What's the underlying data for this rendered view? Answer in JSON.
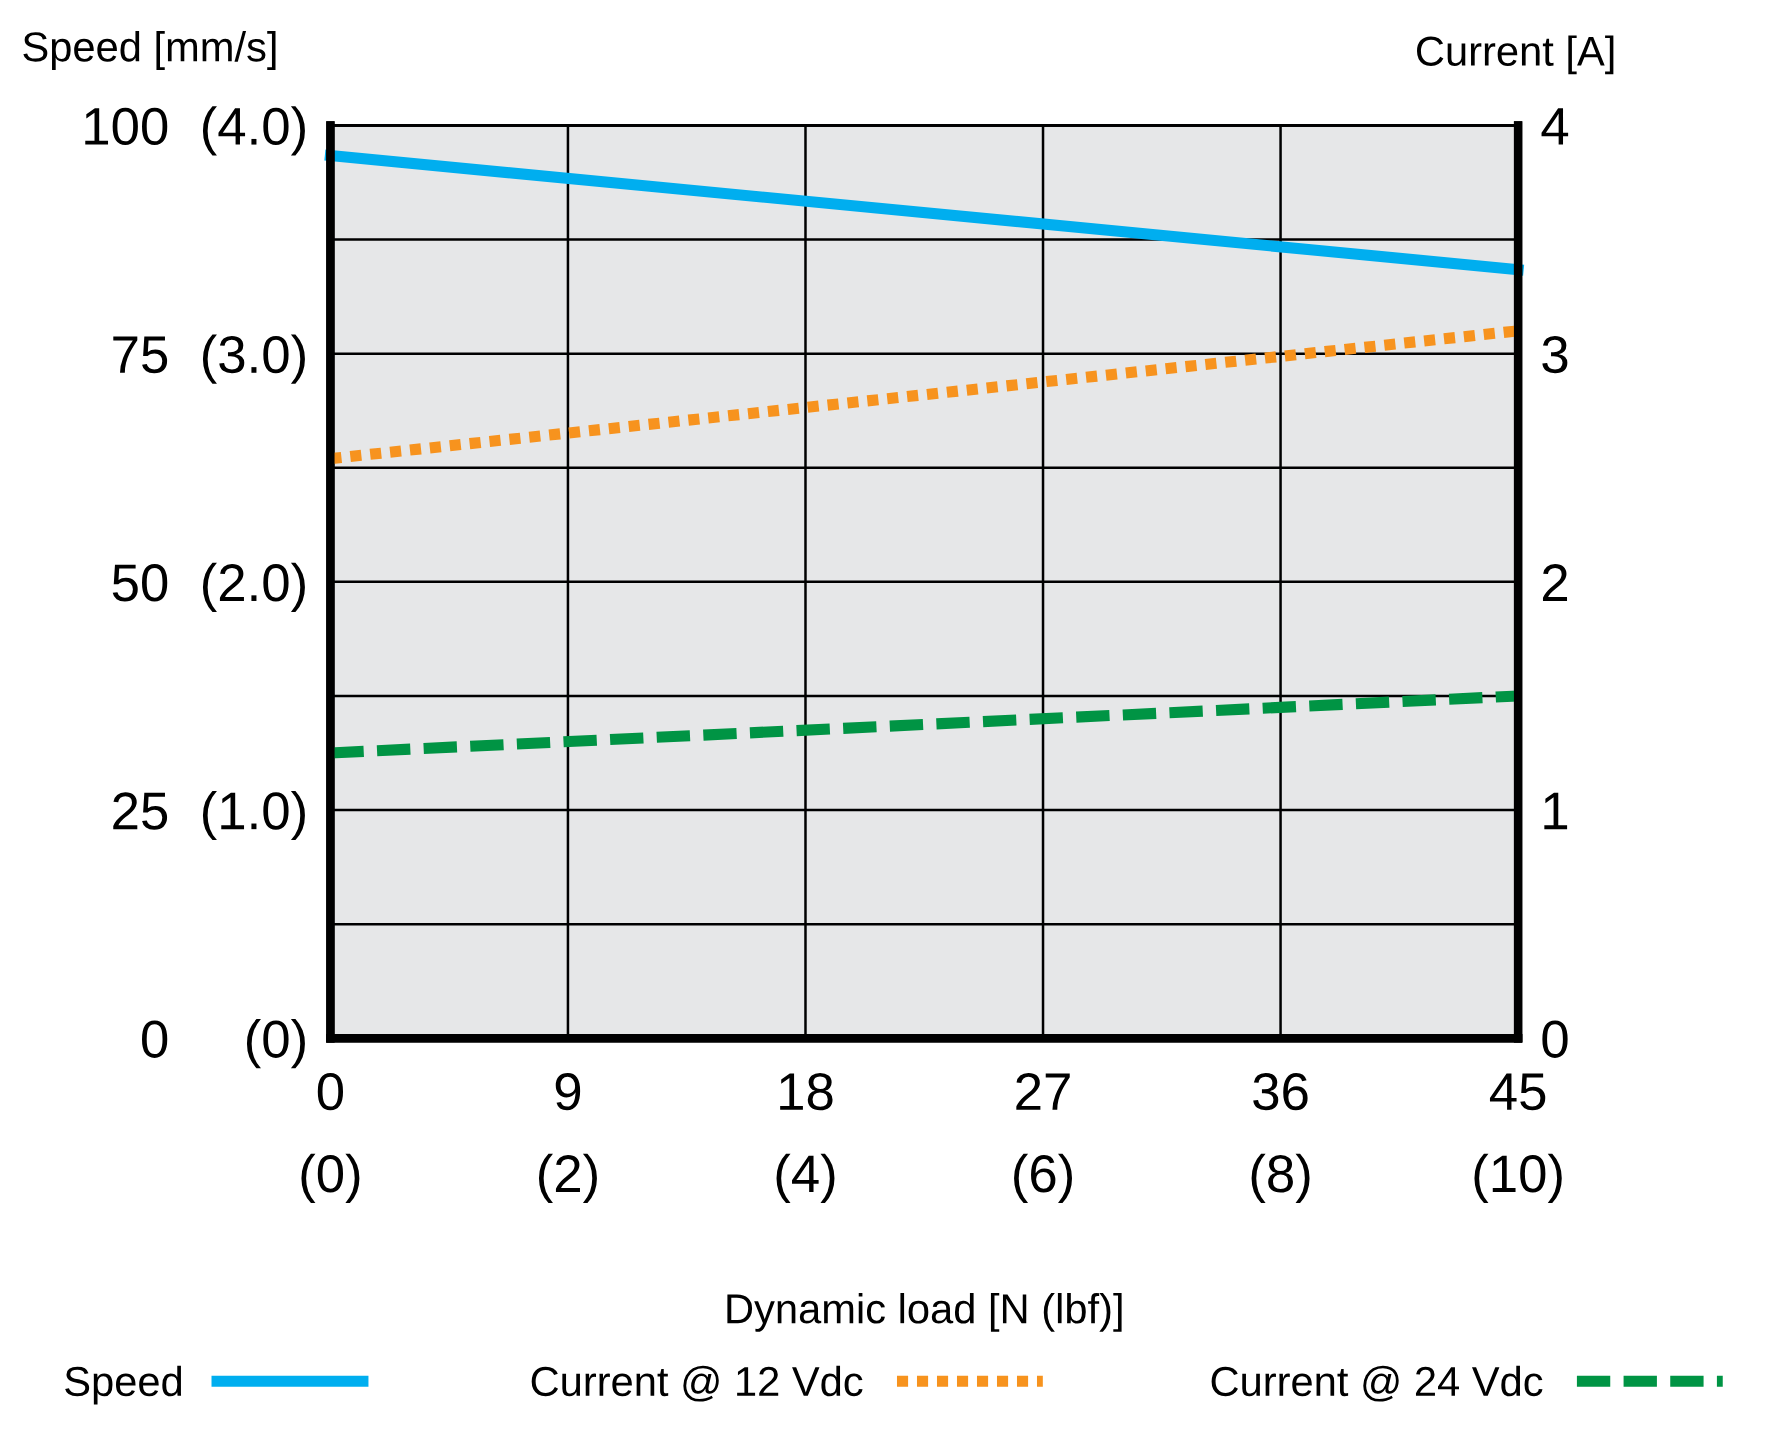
{
  "chart_data": {
    "type": "line",
    "xlabel": "Dynamic load [N (lbf)]",
    "ylabel": "Speed [mm/s]",
    "y2label": "Current [A]",
    "x": [
      0,
      45
    ],
    "series": [
      {
        "name": "Speed",
        "color": "#00aeef",
        "values": [
          96.7,
          84.2
        ],
        "line_style": "solid"
      },
      {
        "name": "Current @ 12 Vdc",
        "color": "#f7931e",
        "values": [
          2.54,
          3.1
        ],
        "line_style": "dotted",
        "axis": "y2"
      },
      {
        "name": "Current @ 24 Vdc",
        "color": "#009444",
        "values": [
          1.25,
          1.5
        ],
        "line_style": "dashed",
        "axis": "y2"
      }
    ],
    "xlim": [
      0,
      45
    ],
    "xticks": [
      0,
      9,
      18,
      27,
      36,
      45
    ],
    "x2lim": [
      0,
      10
    ],
    "x2ticks": [
      {
        "value": 0,
        "label": "(0)"
      },
      {
        "value": 2,
        "label": "(2)"
      },
      {
        "value": 4,
        "label": "(4)"
      },
      {
        "value": 6,
        "label": "(6)"
      },
      {
        "value": 8,
        "label": "(8)"
      },
      {
        "value": 10,
        "label": "(10)"
      }
    ],
    "ylim": [
      0,
      100
    ],
    "yticks": [
      0,
      {
        "value": 12.5,
        "label": null
      },
      25,
      {
        "value": 37.5,
        "label": null
      },
      50,
      {
        "value": 62.5,
        "label": null
      },
      75,
      {
        "value": 87.5,
        "label": null
      },
      100
    ],
    "y3lim": [
      0,
      4
    ],
    "y3ticks": [
      {
        "value": 0,
        "label": "(0)"
      },
      {
        "value": 1,
        "label": "(1.0)"
      },
      {
        "value": 2,
        "label": "(2.0)"
      },
      {
        "value": 3,
        "label": "(3.0)"
      },
      {
        "value": 4,
        "label": "(4.0)"
      }
    ],
    "y2lim": [
      0,
      4
    ],
    "y2ticks": [
      0,
      1,
      2,
      3,
      4
    ],
    "grid": true,
    "legend": "bottom"
  }
}
